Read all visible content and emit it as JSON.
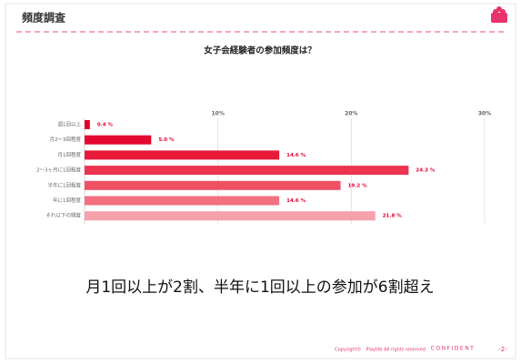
{
  "header": {
    "title": "頻度調査"
  },
  "chart_data": {
    "type": "bar",
    "orientation": "horizontal",
    "title": "女子会経験者の参加頻度は？",
    "categories": [
      "週1回以上",
      "月2～3回程度",
      "月1回程度",
      "2～3ヶ月に1回程度",
      "半年に1回程度",
      "年に1回程度",
      "それ以下の頻度"
    ],
    "values": [
      0.4,
      5.0,
      14.6,
      24.3,
      19.2,
      14.6,
      21.8
    ],
    "value_labels": [
      "0.4 %",
      "5.0 %",
      "14.6 %",
      "24.3 %",
      "19.2 %",
      "14.6 %",
      "21.8 %"
    ],
    "colors": [
      "#e0002a",
      "#e4072f",
      "#e81a3a",
      "#ec3350",
      "#ef5064",
      "#f27080",
      "#f5a0aa"
    ],
    "xlim": [
      0,
      30
    ],
    "xticks": [
      {
        "value": 10,
        "label": "10%"
      },
      {
        "value": 20,
        "label": "20%"
      },
      {
        "value": 30,
        "label": "30%"
      }
    ],
    "grid": true
  },
  "summary": "月1回以上が2割、半年に1回以上の参加が6割超え",
  "footer": {
    "copyright": "Copyright©　Playlife  All rights reserved",
    "confidential": "CONFIDENT",
    "page": "-2-"
  }
}
